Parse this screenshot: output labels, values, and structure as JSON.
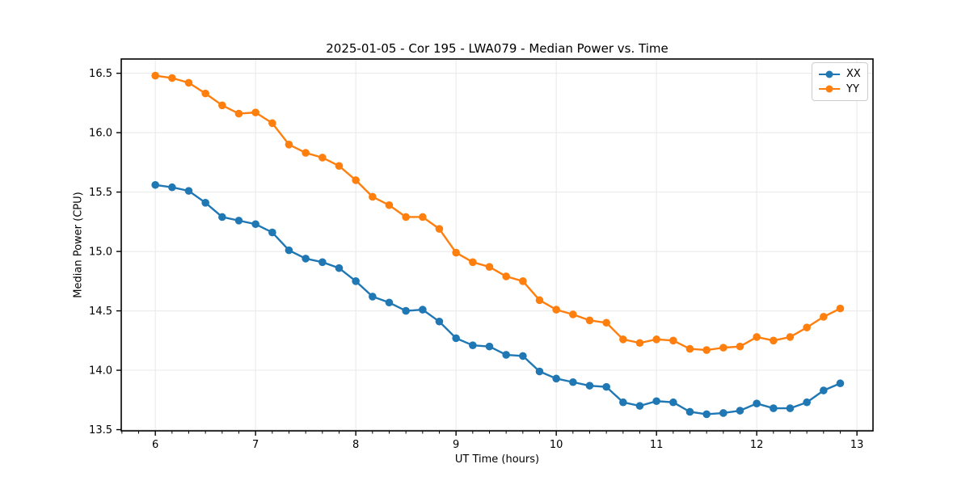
{
  "chart_data": {
    "type": "line",
    "title": "2025-01-05 - Cor 195 - LWA079 - Median Power vs. Time",
    "xlabel": "UT Time (hours)",
    "ylabel": "Median Power (CPU)",
    "xlim": [
      5.66,
      13.16
    ],
    "ylim": [
      13.49,
      16.62
    ],
    "xticks": [
      6,
      7,
      8,
      9,
      10,
      11,
      12,
      13
    ],
    "yticks": [
      13.5,
      14.0,
      14.5,
      15.0,
      15.5,
      16.0,
      16.5
    ],
    "x_minor_interval": 0.1667,
    "grid": true,
    "grid_color": "#e8e8e8",
    "spine_color": "#000000",
    "background": "#ffffff",
    "legend_position": "upper right",
    "x": [
      6.0,
      6.167,
      6.333,
      6.5,
      6.667,
      6.833,
      7.0,
      7.167,
      7.333,
      7.5,
      7.667,
      7.833,
      8.0,
      8.167,
      8.333,
      8.5,
      8.667,
      8.833,
      9.0,
      9.167,
      9.333,
      9.5,
      9.667,
      9.833,
      10.0,
      10.167,
      10.333,
      10.5,
      10.667,
      10.833,
      11.0,
      11.167,
      11.333,
      11.5,
      11.667,
      11.833,
      12.0,
      12.167,
      12.333,
      12.5,
      12.667,
      12.833
    ],
    "series": [
      {
        "name": "XX",
        "color": "#1f77b4",
        "values": [
          15.56,
          15.54,
          15.51,
          15.41,
          15.29,
          15.26,
          15.23,
          15.16,
          15.01,
          14.94,
          14.91,
          14.86,
          14.75,
          14.62,
          14.57,
          14.5,
          14.51,
          14.41,
          14.27,
          14.21,
          14.2,
          14.13,
          14.12,
          13.99,
          13.93,
          13.9,
          13.87,
          13.86,
          13.73,
          13.7,
          13.74,
          13.73,
          13.65,
          13.63,
          13.64,
          13.66,
          13.72,
          13.68,
          13.68,
          13.73,
          13.83,
          13.89
        ]
      },
      {
        "name": "YY",
        "color": "#ff7f0e",
        "values": [
          16.48,
          16.46,
          16.42,
          16.33,
          16.23,
          16.16,
          16.17,
          16.08,
          15.9,
          15.83,
          15.79,
          15.72,
          15.6,
          15.46,
          15.39,
          15.29,
          15.29,
          15.19,
          14.99,
          14.91,
          14.87,
          14.79,
          14.75,
          14.59,
          14.51,
          14.47,
          14.42,
          14.4,
          14.26,
          14.23,
          14.26,
          14.25,
          14.18,
          14.17,
          14.19,
          14.2,
          14.28,
          14.25,
          14.28,
          14.36,
          14.45,
          14.52
        ]
      }
    ]
  }
}
